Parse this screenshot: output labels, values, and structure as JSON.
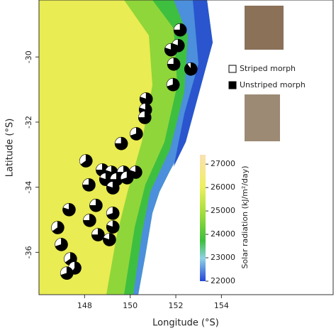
{
  "chart_data": {
    "type": "pie-map",
    "xlabel": "Longitude (°S)",
    "ylabel": "Latitude (°S)",
    "xlim": [
      146,
      158.9
    ],
    "ylim": [
      -37.3,
      -28.25
    ],
    "xticks": [
      148,
      150,
      152,
      154
    ],
    "yticks": [
      -30,
      -32,
      -34,
      -36
    ],
    "lon": [
      152.19,
      152.1,
      151.79,
      151.91,
      152.66,
      151.88,
      150.7,
      150.67,
      150.64,
      150.27,
      149.61,
      148.06,
      148.78,
      149.18,
      149.71,
      150.24,
      148.93,
      149.4,
      149.86,
      148.19,
      149.24,
      148.5,
      147.32,
      149.24,
      146.82,
      148.22,
      149.24,
      148.59,
      149.09,
      146.98,
      147.38,
      147.57,
      147.22
    ],
    "lat": [
      -29.17,
      -29.65,
      -29.78,
      -30.22,
      -30.37,
      -30.85,
      -31.29,
      -31.62,
      -31.86,
      -32.36,
      -32.66,
      -33.19,
      -33.47,
      -33.54,
      -33.54,
      -33.54,
      -33.76,
      -33.76,
      -33.71,
      -33.93,
      -34.02,
      -34.56,
      -34.69,
      -34.8,
      -35.24,
      -35.02,
      -35.22,
      -35.46,
      -35.61,
      -35.76,
      -36.2,
      -36.48,
      -36.64
    ],
    "series": [
      {
        "name": "Striped morph",
        "color": "#ffffff",
        "values": [
          25,
          20,
          20,
          25,
          10,
          30,
          20,
          20,
          25,
          30,
          25,
          35,
          25,
          20,
          25,
          20,
          20,
          25,
          30,
          25,
          20,
          25,
          20,
          30,
          35,
          25,
          20,
          25,
          20,
          30,
          35,
          40,
          30
        ]
      },
      {
        "name": "Unstriped morph",
        "color": "#000000",
        "values": [
          75,
          80,
          80,
          75,
          90,
          70,
          80,
          80,
          75,
          70,
          75,
          65,
          75,
          80,
          75,
          80,
          80,
          75,
          70,
          75,
          80,
          75,
          80,
          70,
          65,
          75,
          80,
          75,
          80,
          70,
          65,
          60,
          70
        ]
      }
    ],
    "colorbar": {
      "label": "Solar radiation (kJ/m²/day)",
      "lim": [
        22000,
        27400
      ],
      "ticks": [
        22000,
        23000,
        24000,
        25000,
        26000,
        27000
      ]
    }
  }
}
